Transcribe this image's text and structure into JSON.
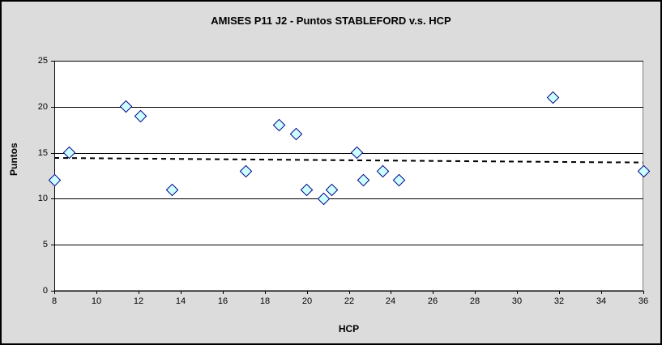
{
  "chart_data": {
    "type": "scatter",
    "title": "AMISES P11 J2 - Puntos STABLEFORD v.s. HCP",
    "xlabel": "HCP",
    "ylabel": "Puntos",
    "xlim": [
      8,
      36
    ],
    "ylim": [
      0,
      25
    ],
    "x_ticks": [
      8,
      10,
      12,
      14,
      16,
      18,
      20,
      22,
      24,
      26,
      28,
      30,
      32,
      34,
      36
    ],
    "y_ticks": [
      0,
      5,
      10,
      15,
      20,
      25
    ],
    "grid": "horizontal-only",
    "legend": "none",
    "points": [
      [
        8,
        12
      ],
      [
        8.7,
        15
      ],
      [
        11.4,
        20
      ],
      [
        12.1,
        19
      ],
      [
        13.6,
        11
      ],
      [
        17.1,
        13
      ],
      [
        18.7,
        18
      ],
      [
        19.5,
        17
      ],
      [
        20,
        11
      ],
      [
        20.8,
        10
      ],
      [
        21.2,
        11
      ],
      [
        22.4,
        15
      ],
      [
        22.7,
        12
      ],
      [
        23.6,
        13
      ],
      [
        24.4,
        12
      ],
      [
        31.7,
        21
      ],
      [
        36,
        13
      ]
    ],
    "trendline": {
      "style": "dashed",
      "x1": 8,
      "y1": 14.4,
      "x2": 36,
      "y2": 13.9
    },
    "marker": {
      "shape": "diamond",
      "fill": "#CCFFFF",
      "stroke": "#000080"
    },
    "colors": {
      "chart_background": "#DCDCDC",
      "plot_background": "#FFFFFF",
      "plot_border": "#808080",
      "gridline": "#000000",
      "outer_border": "#000000",
      "text": "#000000"
    }
  }
}
